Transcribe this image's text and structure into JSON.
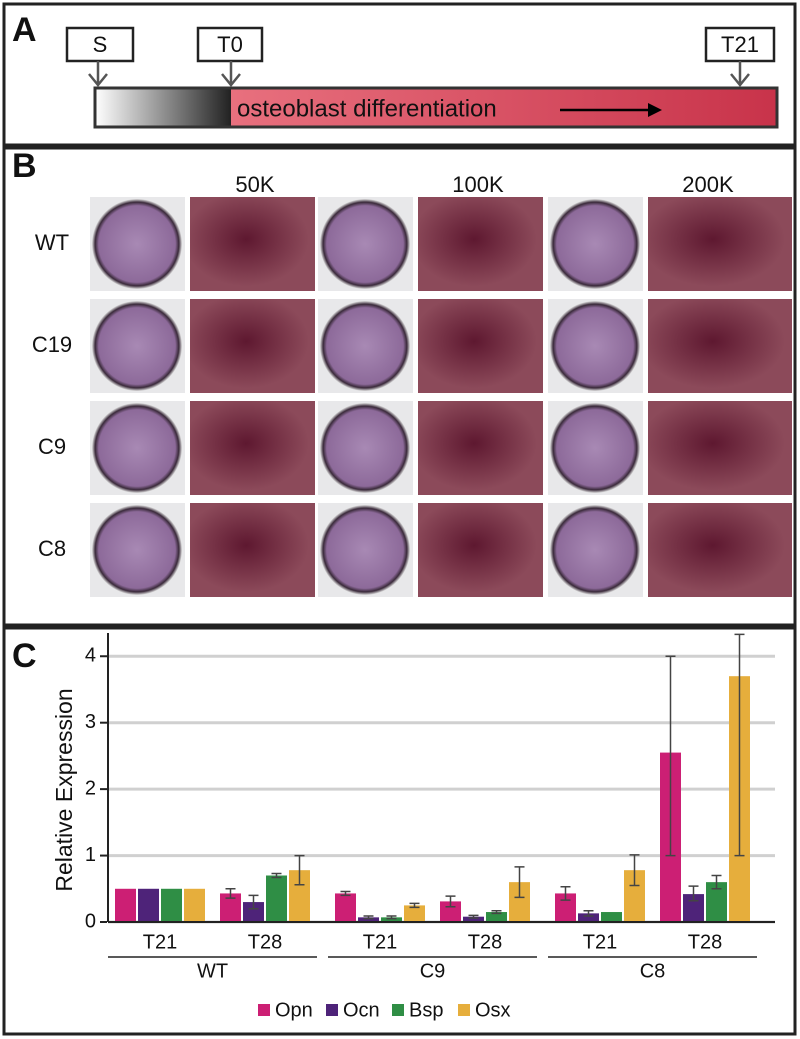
{
  "panel_a": {
    "label": "A",
    "markers": [
      "S",
      "T0",
      "T21"
    ],
    "bar_text": "osteoblast differentiation"
  },
  "panel_b": {
    "label": "B",
    "columns": [
      "50K",
      "100K",
      "200K"
    ],
    "rows": [
      "WT",
      "C19",
      "C9",
      "C8"
    ]
  },
  "chart_data": {
    "label": "C",
    "type": "bar",
    "ylabel": "Relative Expression",
    "categories": [
      "T21",
      "T28",
      "T21",
      "T28",
      "T21",
      "T28"
    ],
    "groups": [
      "WT",
      "C9",
      "C8"
    ],
    "series": [
      {
        "name": "Opn",
        "color": "#cc1f74",
        "values": [
          0.5,
          0.43,
          0.43,
          0.31,
          0.43,
          2.55
        ],
        "error_low": [
          0,
          0.07,
          0.03,
          0.08,
          0.1,
          1.55
        ],
        "error_high": [
          0,
          0.07,
          0.03,
          0.08,
          0.1,
          1.45
        ]
      },
      {
        "name": "Ocn",
        "color": "#4e2379",
        "values": [
          0.5,
          0.3,
          0.07,
          0.08,
          0.13,
          0.42
        ],
        "error_low": [
          0,
          0.1,
          0.02,
          0.02,
          0.04,
          0.1
        ],
        "error_high": [
          0,
          0.1,
          0.02,
          0.02,
          0.04,
          0.12
        ]
      },
      {
        "name": "Bsp",
        "color": "#2f8e45",
        "values": [
          0.5,
          0.7,
          0.07,
          0.15,
          0.15,
          0.6
        ],
        "error_low": [
          0,
          0.03,
          0.02,
          0.02,
          0,
          0.1
        ],
        "error_high": [
          0,
          0.03,
          0.02,
          0.02,
          0,
          0.1
        ]
      },
      {
        "name": "Osx",
        "color": "#e6ae3c",
        "values": [
          0.5,
          0.78,
          0.25,
          0.6,
          0.78,
          3.7
        ],
        "error_low": [
          0,
          0.22,
          0.03,
          0.23,
          0.23,
          2.7
        ],
        "error_high": [
          0,
          0.22,
          0.03,
          0.23,
          0.23,
          0.63
        ]
      }
    ],
    "ylim": [
      0,
      4.35
    ],
    "yticks": [
      0,
      1,
      2,
      3,
      4
    ],
    "grid": true,
    "legend": "bottom"
  }
}
